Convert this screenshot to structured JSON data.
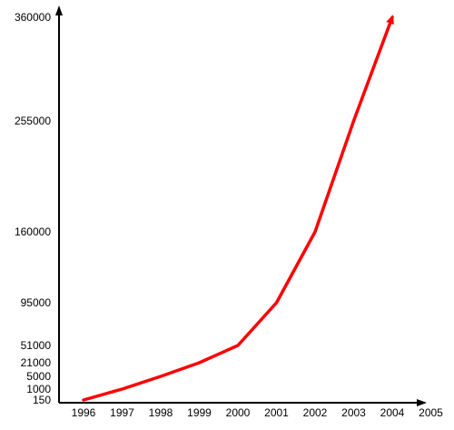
{
  "chart_data": {
    "type": "line",
    "title": "",
    "xlabel": "",
    "ylabel": "",
    "x_ticks": [
      "1996",
      "1997",
      "1998",
      "1999",
      "2000",
      "2001",
      "2002",
      "2003",
      "2004",
      "2005"
    ],
    "y_ticks": [
      150,
      1000,
      5000,
      21000,
      51000,
      95000,
      160000,
      255000,
      360000
    ],
    "y_tick_labels": [
      "150",
      "1000",
      "5000",
      "21000",
      "51000",
      "95000",
      "160000",
      "255000",
      "360000"
    ],
    "y_scale": "nonlinear",
    "grid": false,
    "legend": "none",
    "series": [
      {
        "color": "#ff0000",
        "x": [
          "1996",
          "1997",
          "1998",
          "1999",
          "2000",
          "2001",
          "2002",
          "2003",
          "2004"
        ],
        "y": [
          150,
          1000,
          5000,
          21000,
          51000,
          95000,
          160000,
          255000,
          360000
        ]
      }
    ]
  }
}
